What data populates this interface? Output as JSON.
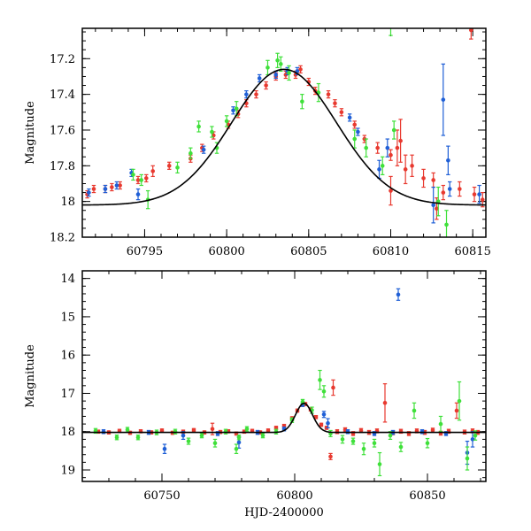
{
  "chart_data": [
    {
      "type": "scatter",
      "panel": "top",
      "title": "",
      "xlabel": "",
      "ylabel": "Magnitude",
      "xlim": [
        60791.2,
        60815.8
      ],
      "ylim": [
        18.2,
        17.03
      ],
      "y_inverted": true,
      "xticks_labeled": [
        60795,
        60800,
        60805,
        60810,
        60815
      ],
      "xticks_minor_step": 1,
      "yticks_labeled": [
        17.2,
        17.4,
        17.6,
        17.8,
        18,
        18.2
      ],
      "ytick_labels": [
        "17.2",
        "17.4",
        "17.6",
        "17.8",
        "18",
        "18.2"
      ],
      "yticks_minor_step": 0.05,
      "model_curve": {
        "shape": "gaussian-like",
        "peak_x": 60803.5,
        "peak_mag": 17.26,
        "baseline_mag": 18.02,
        "width_days": 3.2
      },
      "series": [
        {
          "color": "#e8392f",
          "points": [
            [
              60791.5,
              17.96
            ],
            [
              60791.9,
              17.93
            ],
            [
              60792.6,
              17.93
            ],
            [
              60793.0,
              17.92
            ],
            [
              60793.5,
              17.91
            ],
            [
              60794.6,
              17.88
            ],
            [
              60795.1,
              17.87
            ],
            [
              60795.5,
              17.83
            ],
            [
              60796.5,
              17.8
            ],
            [
              60797.8,
              17.76
            ],
            [
              60798.5,
              17.7
            ],
            [
              60799.2,
              17.63
            ],
            [
              60800.1,
              17.57
            ],
            [
              60800.7,
              17.51
            ],
            [
              60801.2,
              17.45
            ],
            [
              60801.8,
              17.4
            ],
            [
              60802.4,
              17.35
            ],
            [
              60803.0,
              17.3
            ],
            [
              60803.6,
              17.29
            ],
            [
              60804.2,
              17.29
            ],
            [
              60804.5,
              17.26
            ],
            [
              60805.0,
              17.33
            ],
            [
              60805.4,
              17.38
            ],
            [
              60806.2,
              17.4
            ],
            [
              60806.6,
              17.45
            ],
            [
              60807.0,
              17.5
            ],
            [
              60807.8,
              17.57
            ],
            [
              60808.4,
              17.65
            ],
            [
              60809.2,
              17.7
            ],
            [
              60810.0,
              17.74
            ],
            [
              60810.4,
              17.7
            ],
            [
              60810.6,
              17.66
            ],
            [
              60810.9,
              17.82
            ],
            [
              60811.3,
              17.8
            ],
            [
              60812.0,
              17.87
            ],
            [
              60812.6,
              17.88
            ],
            [
              60813.2,
              17.95
            ],
            [
              60814.2,
              17.93
            ],
            [
              60815.1,
              17.96
            ],
            [
              60815.6,
              17.99
            ],
            [
              60810.0,
              17.94
            ],
            [
              60814.9,
              17.04
            ],
            [
              60812.8,
              18.04
            ]
          ],
          "errors": [
            0.02,
            0.02,
            0.02,
            0.02,
            0.02,
            0.02,
            0.02,
            0.03,
            0.02,
            0.02,
            0.02,
            0.02,
            0.02,
            0.02,
            0.02,
            0.02,
            0.02,
            0.02,
            0.02,
            0.02,
            0.02,
            0.02,
            0.02,
            0.02,
            0.02,
            0.02,
            0.02,
            0.02,
            0.03,
            0.03,
            0.1,
            0.12,
            0.08,
            0.06,
            0.05,
            0.04,
            0.04,
            0.04,
            0.04,
            0.04,
            0.08,
            0.05,
            0.06
          ]
        },
        {
          "color": "#1f5fd6",
          "points": [
            [
              60791.6,
              17.95
            ],
            [
              60792.6,
              17.93
            ],
            [
              60793.3,
              17.91
            ],
            [
              60794.2,
              17.84
            ],
            [
              60794.6,
              17.96
            ],
            [
              60798.6,
              17.71
            ],
            [
              60800.4,
              17.49
            ],
            [
              60801.2,
              17.4
            ],
            [
              60802.0,
              17.31
            ],
            [
              60803.0,
              17.29
            ],
            [
              60803.7,
              17.27
            ],
            [
              60804.3,
              17.27
            ],
            [
              60807.5,
              17.53
            ],
            [
              60808.0,
              17.61
            ],
            [
              60809.3,
              17.82
            ],
            [
              60809.8,
              17.7
            ],
            [
              60813.2,
              17.43
            ],
            [
              60813.5,
              17.77
            ],
            [
              60812.6,
              18.02
            ],
            [
              60813.6,
              17.93
            ],
            [
              60815.4,
              17.96
            ]
          ],
          "errors": [
            0.02,
            0.02,
            0.02,
            0.02,
            0.03,
            0.02,
            0.02,
            0.02,
            0.02,
            0.02,
            0.02,
            0.02,
            0.02,
            0.02,
            0.05,
            0.05,
            0.2,
            0.08,
            0.1,
            0.04,
            0.05
          ]
        },
        {
          "color": "#3fe03a",
          "points": [
            [
              60794.3,
              17.85
            ],
            [
              60794.8,
              17.88
            ],
            [
              60795.2,
              17.99
            ],
            [
              60797.0,
              17.81
            ],
            [
              60797.8,
              17.73
            ],
            [
              60798.3,
              17.58
            ],
            [
              60799.1,
              17.61
            ],
            [
              60799.4,
              17.7
            ],
            [
              60800.0,
              17.55
            ],
            [
              60800.6,
              17.48
            ],
            [
              60802.5,
              17.25
            ],
            [
              60803.1,
              17.21
            ],
            [
              60803.3,
              17.23
            ],
            [
              60803.8,
              17.28
            ],
            [
              60804.6,
              17.44
            ],
            [
              60805.6,
              17.39
            ],
            [
              60807.8,
              17.65
            ],
            [
              60808.5,
              17.7
            ],
            [
              60809.5,
              17.8
            ],
            [
              60810.2,
              17.6
            ],
            [
              60812.9,
              18.0
            ],
            [
              60813.4,
              18.13
            ],
            [
              60810.0,
              17.02
            ]
          ],
          "errors": [
            0.03,
            0.03,
            0.05,
            0.03,
            0.03,
            0.03,
            0.03,
            0.03,
            0.03,
            0.04,
            0.04,
            0.04,
            0.04,
            0.04,
            0.04,
            0.05,
            0.05,
            0.05,
            0.05,
            0.05,
            0.08,
            0.08,
            0.05
          ]
        }
      ]
    },
    {
      "type": "scatter",
      "panel": "bottom",
      "title": "",
      "xlabel": "HJD-2400000",
      "ylabel": "Magnitude",
      "xlim": [
        60720,
        60872
      ],
      "ylim": [
        19.3,
        13.8
      ],
      "y_inverted": true,
      "xticks_labeled": [
        60750,
        60800,
        60850
      ],
      "xticks_minor_step": 10,
      "yticks_labeled": [
        14,
        15,
        16,
        17,
        18,
        19
      ],
      "yticks_minor_step": 0.2,
      "model_curve": {
        "shape": "gaussian-like",
        "peak_x": 60803.5,
        "peak_mag": 17.26,
        "baseline_mag": 18.02,
        "width_days": 3.2
      },
      "series": [
        {
          "color": "#e8392f",
          "points": [
            [
              60726,
              18.0
            ],
            [
              60730,
              18.02
            ],
            [
              60734,
              17.98
            ],
            [
              60738,
              18.03
            ],
            [
              60742,
              17.99
            ],
            [
              60746,
              18.02
            ],
            [
              60750,
              17.97
            ],
            [
              60754,
              18.03
            ],
            [
              60758,
              18.0
            ],
            [
              60762,
              17.96
            ],
            [
              60766,
              18.02
            ],
            [
              60769,
              17.93
            ],
            [
              60772,
              18.01
            ],
            [
              60775,
              17.99
            ],
            [
              60778,
              18.05
            ],
            [
              60781,
              18.0
            ],
            [
              60784,
              17.98
            ],
            [
              60787,
              18.02
            ],
            [
              60790,
              17.97
            ],
            [
              60793,
              17.9
            ],
            [
              60796,
              17.85
            ],
            [
              60799,
              17.65
            ],
            [
              60801,
              17.45
            ],
            [
              60803,
              17.3
            ],
            [
              60804,
              17.28
            ],
            [
              60806,
              17.42
            ],
            [
              60808,
              17.62
            ],
            [
              60810,
              17.82
            ],
            [
              60812,
              17.9
            ],
            [
              60813.5,
              18.65
            ],
            [
              60814.5,
              16.85
            ],
            [
              60816,
              18.0
            ],
            [
              60819,
              17.95
            ],
            [
              60822,
              18.05
            ],
            [
              60825,
              17.97
            ],
            [
              60828,
              18.02
            ],
            [
              60831,
              17.98
            ],
            [
              60834,
              17.25
            ],
            [
              60837,
              18.03
            ],
            [
              60840,
              17.99
            ],
            [
              60843,
              18.05
            ],
            [
              60846,
              17.98
            ],
            [
              60849,
              18.02
            ],
            [
              60852,
              17.96
            ],
            [
              60855,
              18.04
            ],
            [
              60858,
              17.99
            ],
            [
              60861,
              17.45
            ],
            [
              60864,
              18.01
            ],
            [
              60867,
              17.98
            ],
            [
              60869,
              18.02
            ]
          ],
          "errors": [
            0.04,
            0.04,
            0.04,
            0.04,
            0.04,
            0.04,
            0.04,
            0.04,
            0.04,
            0.04,
            0.04,
            0.15,
            0.04,
            0.04,
            0.04,
            0.04,
            0.04,
            0.04,
            0.04,
            0.04,
            0.04,
            0.04,
            0.04,
            0.04,
            0.04,
            0.04,
            0.04,
            0.04,
            0.04,
            0.08,
            0.2,
            0.05,
            0.05,
            0.05,
            0.05,
            0.05,
            0.05,
            0.5,
            0.05,
            0.05,
            0.05,
            0.05,
            0.05,
            0.05,
            0.05,
            0.05,
            0.2,
            0.05,
            0.05,
            0.05
          ]
        },
        {
          "color": "#1f5fd6",
          "points": [
            [
              60728,
              18.0
            ],
            [
              60745,
              18.02
            ],
            [
              60751,
              18.45
            ],
            [
              60758,
              18.1
            ],
            [
              60771,
              18.05
            ],
            [
              60779,
              18.28
            ],
            [
              60786,
              18.02
            ],
            [
              60796,
              17.93
            ],
            [
              60803,
              17.3
            ],
            [
              60811,
              17.55
            ],
            [
              60812.5,
              17.78
            ],
            [
              60820,
              18.0
            ],
            [
              60830,
              18.05
            ],
            [
              60837,
              18.02
            ],
            [
              60839,
              14.42
            ],
            [
              60848,
              18.0
            ],
            [
              60857,
              18.05
            ],
            [
              60865,
              18.55
            ],
            [
              60867,
              18.2
            ]
          ],
          "errors": [
            0.05,
            0.05,
            0.12,
            0.1,
            0.05,
            0.15,
            0.05,
            0.05,
            0.04,
            0.08,
            0.12,
            0.05,
            0.05,
            0.05,
            0.15,
            0.05,
            0.05,
            0.3,
            0.2
          ]
        },
        {
          "color": "#3fe03a",
          "points": [
            [
              60725,
              17.98
            ],
            [
              60733,
              18.15
            ],
            [
              60737,
              17.95
            ],
            [
              60741,
              18.15
            ],
            [
              60748,
              18.02
            ],
            [
              60755,
              18.0
            ],
            [
              60760,
              18.25
            ],
            [
              60765,
              18.1
            ],
            [
              60770,
              18.3
            ],
            [
              60774,
              18.0
            ],
            [
              60778,
              18.45
            ],
            [
              60779,
              18.15
            ],
            [
              60782,
              17.93
            ],
            [
              60788,
              18.1
            ],
            [
              60793,
              18.0
            ],
            [
              60799,
              17.7
            ],
            [
              60803,
              17.22
            ],
            [
              60806.5,
              17.44
            ],
            [
              60809.5,
              16.65
            ],
            [
              60811,
              16.95
            ],
            [
              60813.5,
              18.05
            ],
            [
              60818,
              18.2
            ],
            [
              60822,
              18.25
            ],
            [
              60826,
              18.45
            ],
            [
              60830,
              18.3
            ],
            [
              60832,
              18.85
            ],
            [
              60836,
              18.1
            ],
            [
              60840,
              18.4
            ],
            [
              60845,
              17.45
            ],
            [
              60850,
              18.3
            ],
            [
              60855,
              17.8
            ],
            [
              60862,
              17.2
            ],
            [
              60865,
              18.7
            ],
            [
              60868,
              18.1
            ]
          ],
          "errors": [
            0.06,
            0.06,
            0.06,
            0.06,
            0.06,
            0.06,
            0.08,
            0.06,
            0.1,
            0.06,
            0.12,
            0.06,
            0.06,
            0.06,
            0.06,
            0.06,
            0.06,
            0.08,
            0.25,
            0.15,
            0.08,
            0.1,
            0.08,
            0.15,
            0.1,
            0.3,
            0.1,
            0.12,
            0.2,
            0.12,
            0.2,
            0.5,
            0.3,
            0.12
          ]
        }
      ]
    }
  ]
}
